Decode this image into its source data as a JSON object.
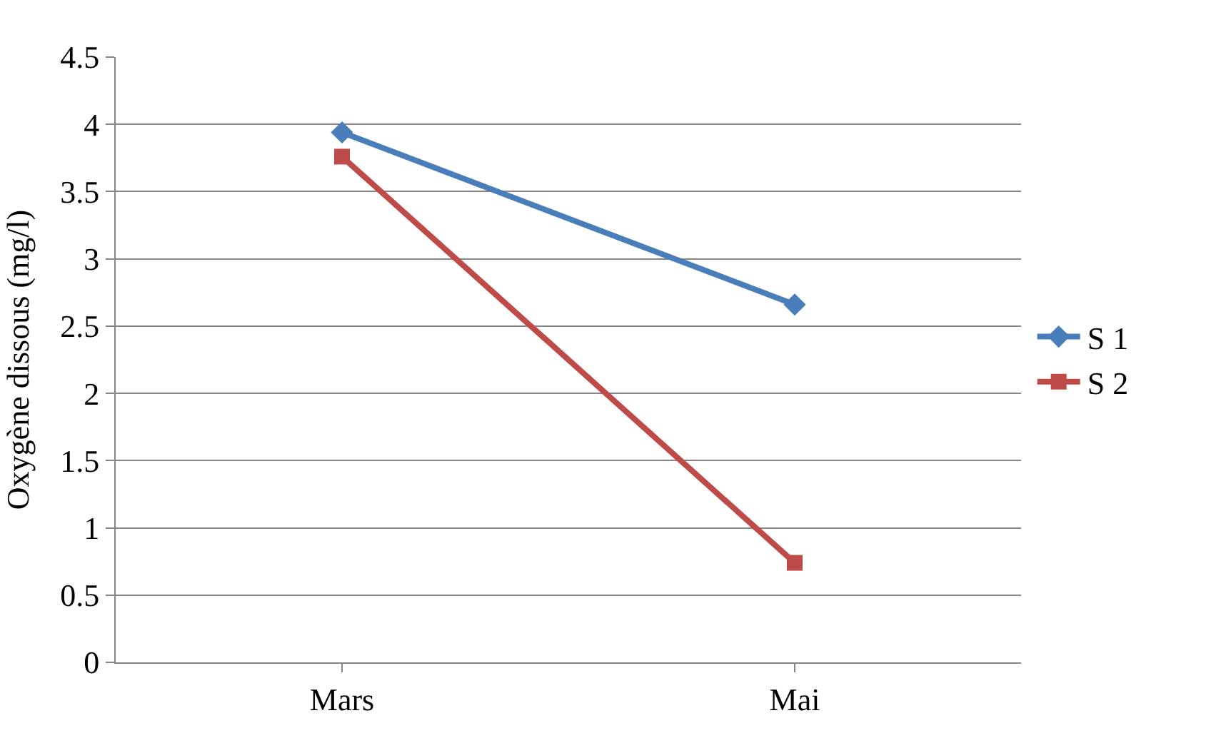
{
  "chart_data": {
    "type": "line",
    "ylabel": "Oxygène dissous (mg/l)",
    "categories": [
      "Mars",
      "Mai"
    ],
    "series": [
      {
        "name": "S 1",
        "color": "#4a7ebb",
        "values": [
          3.94,
          2.66
        ],
        "marker": "diamond"
      },
      {
        "name": "S 2",
        "color": "#be4b48",
        "values": [
          3.76,
          0.74
        ],
        "marker": "square"
      }
    ],
    "ylim": [
      0,
      4.5
    ],
    "yticks": [
      0,
      0.5,
      1,
      1.5,
      2,
      2.5,
      3,
      3.5,
      4,
      4.5
    ],
    "grid": "y",
    "legend": "right",
    "line_style": "solid"
  }
}
